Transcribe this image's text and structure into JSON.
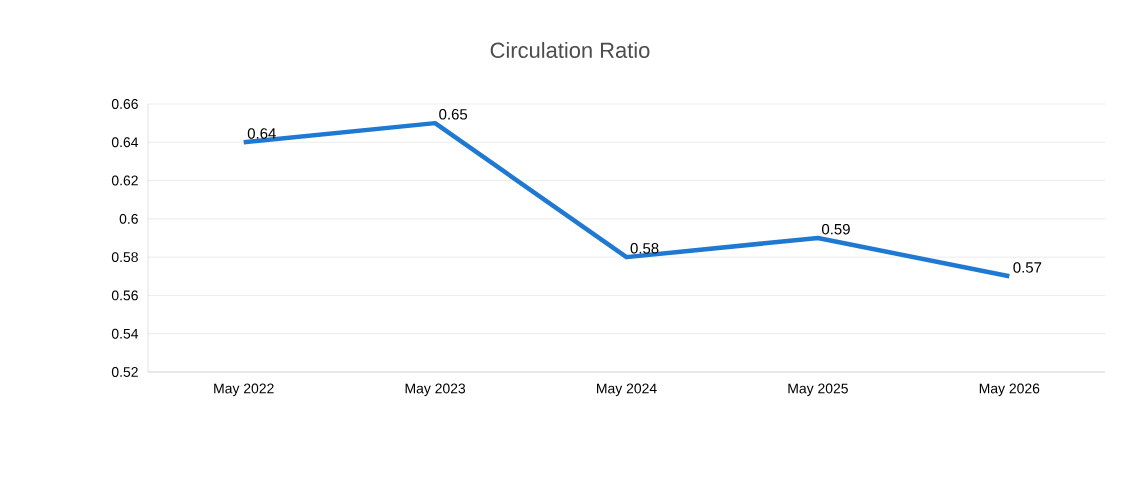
{
  "chart_data": {
    "type": "line",
    "title": "Circulation Ratio",
    "categories": [
      "May 2022",
      "May 2023",
      "May 2024",
      "May 2025",
      "May 2026"
    ],
    "values": [
      0.64,
      0.65,
      0.58,
      0.59,
      0.57
    ],
    "color": "#1f78d1",
    "ylim": [
      0.52,
      0.66
    ],
    "yticks": [
      0.52,
      0.54,
      0.56,
      0.58,
      0.6,
      0.62,
      0.64,
      0.66
    ],
    "grid": "y",
    "data_labels": true,
    "marker": "none",
    "line_style": "solid"
  }
}
